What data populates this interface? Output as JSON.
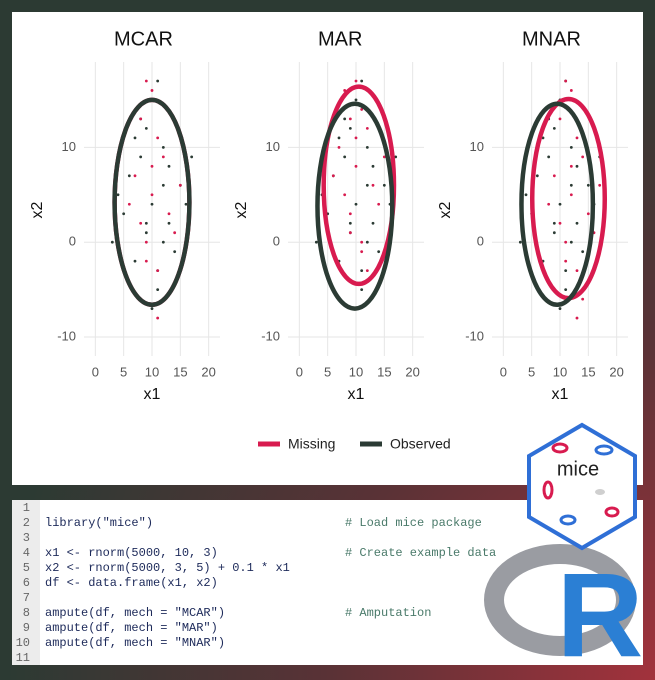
{
  "chart_data": [
    {
      "type": "scatter",
      "title": "MCAR",
      "x_label": "x1",
      "y_label": "x2",
      "xlim": [
        -2,
        22
      ],
      "ylim": [
        -12,
        19
      ],
      "xticks": [
        0,
        5,
        10,
        15,
        20
      ],
      "yticks": [
        -10,
        0,
        10
      ],
      "grid": true,
      "series": [
        {
          "name": "Missing",
          "color": "#d81b4f",
          "x": [
            10,
            9,
            12,
            8,
            11,
            13,
            7,
            10,
            14,
            9,
            11,
            6,
            12,
            10,
            8,
            15,
            9,
            11
          ],
          "y": [
            5,
            0,
            9,
            13,
            -3,
            3,
            7,
            16,
            1,
            -2,
            11,
            4,
            -6,
            8,
            2,
            6,
            17,
            -8
          ],
          "ellipse": {
            "cx": 10,
            "cy": 4.2,
            "rx": 6.6,
            "ry": 10.8
          }
        },
        {
          "name": "Observed",
          "color": "#2b3b34",
          "x": [
            10,
            7,
            13,
            9,
            12,
            5,
            15,
            11,
            8,
            10,
            14,
            6,
            9,
            12,
            11,
            4,
            16,
            8,
            10,
            13,
            7,
            11,
            9,
            12,
            3,
            17
          ],
          "y": [
            4,
            -2,
            8,
            12,
            0,
            3,
            6,
            -5,
            9,
            15,
            -1,
            7,
            2,
            10,
            -3,
            5,
            4,
            13,
            -7,
            2,
            11,
            17,
            1,
            6,
            0,
            9
          ],
          "ellipse": {
            "cx": 10,
            "cy": 4.2,
            "rx": 6.6,
            "ry": 10.8
          }
        }
      ]
    },
    {
      "type": "scatter",
      "title": "MAR",
      "x_label": "x1",
      "y_label": "x2",
      "xlim": [
        -2,
        22
      ],
      "ylim": [
        -12,
        19
      ],
      "xticks": [
        0,
        5,
        10,
        15,
        20
      ],
      "yticks": [
        -10,
        0,
        10
      ],
      "grid": true,
      "series": [
        {
          "name": "Missing",
          "color": "#d81b4f",
          "x": [
            10,
            9,
            12,
            8,
            11,
            13,
            7,
            10,
            14,
            9,
            11,
            6,
            12,
            10,
            8,
            15,
            9,
            11
          ],
          "y": [
            8,
            3,
            12,
            16,
            0,
            6,
            10,
            17,
            4,
            1,
            14,
            7,
            -3,
            11,
            5,
            9,
            13,
            -1
          ],
          "ellipse": {
            "cx": 10.5,
            "cy": 6,
            "rx": 6.2,
            "ry": 10.4
          }
        },
        {
          "name": "Observed",
          "color": "#2b3b34",
          "x": [
            10,
            7,
            13,
            9,
            12,
            5,
            15,
            11,
            8,
            10,
            14,
            6,
            9,
            12,
            11,
            4,
            16,
            8,
            10,
            13,
            7,
            11,
            9,
            12,
            3,
            17
          ],
          "y": [
            4,
            -2,
            8,
            12,
            0,
            3,
            6,
            -5,
            9,
            15,
            -1,
            7,
            2,
            10,
            -3,
            5,
            4,
            13,
            -7,
            2,
            11,
            17,
            1,
            6,
            0,
            9
          ],
          "ellipse": {
            "cx": 9.8,
            "cy": 3.8,
            "rx": 6.6,
            "ry": 10.8
          }
        }
      ]
    },
    {
      "type": "scatter",
      "title": "MNAR",
      "x_label": "x1",
      "y_label": "x2",
      "xlim": [
        -2,
        22
      ],
      "ylim": [
        -12,
        19
      ],
      "xticks": [
        0,
        5,
        10,
        15,
        20
      ],
      "yticks": [
        -10,
        0,
        10
      ],
      "grid": true,
      "series": [
        {
          "name": "Missing",
          "color": "#d81b4f",
          "x": [
            12,
            11,
            14,
            10,
            13,
            15,
            9,
            12,
            16,
            11,
            13,
            8,
            14,
            12,
            10,
            17,
            11,
            13
          ],
          "y": [
            5,
            0,
            9,
            13,
            -3,
            3,
            7,
            16,
            1,
            -2,
            11,
            4,
            -6,
            8,
            2,
            6,
            17,
            -8
          ],
          "ellipse": {
            "cx": 11.5,
            "cy": 4.6,
            "rx": 6.4,
            "ry": 10.5
          }
        },
        {
          "name": "Observed",
          "color": "#2b3b34",
          "x": [
            10,
            7,
            13,
            9,
            12,
            5,
            15,
            11,
            8,
            10,
            14,
            6,
            9,
            12,
            11,
            4,
            16,
            8,
            10,
            13,
            7,
            11,
            9,
            12,
            3,
            17
          ],
          "y": [
            4,
            -2,
            8,
            12,
            0,
            3,
            6,
            -5,
            9,
            15,
            -1,
            7,
            2,
            10,
            -3,
            5,
            4,
            13,
            -7,
            2,
            11,
            17,
            1,
            6,
            0,
            9
          ],
          "ellipse": {
            "cx": 9.5,
            "cy": 4,
            "rx": 6.3,
            "ry": 10.6
          }
        }
      ]
    }
  ],
  "code": [
    {
      "number": 1
    },
    {
      "number": 2,
      "code": "library(\"mice\")",
      "comment": "# Load mice package"
    },
    {
      "number": 3
    },
    {
      "number": 4,
      "code": "x1 <- rnorm(5000, 10, 3)",
      "comment": "# Create example data"
    },
    {
      "number": 5,
      "code": "x2 <- rnorm(5000, 3, 5) + 0.1 * x1"
    },
    {
      "number": 6,
      "code": "df <- data.frame(x1, x2)"
    },
    {
      "number": 7
    },
    {
      "number": 8,
      "code": "ampute(df, mech = \"MCAR\")",
      "comment": "# Amputation"
    },
    {
      "number": 9,
      "code": "ampute(df, mech = \"MAR\")"
    },
    {
      "number": 10,
      "code": "ampute(df, mech = \"MNAR\")"
    },
    {
      "number": 11
    }
  ],
  "logos": {
    "mice": "mice",
    "r": "R"
  }
}
